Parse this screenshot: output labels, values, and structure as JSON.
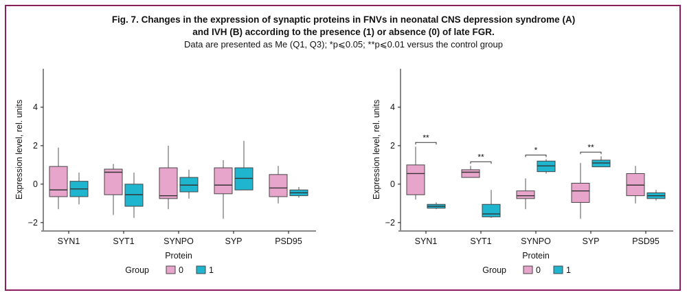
{
  "figure": {
    "title_line1": "Fig. 7. Changes in the expression of synaptic proteins in FNVs in neonatal CNS depression syndrome (A)",
    "title_line2": "and IVH (B) according to the presence (1) or absence (0) of late FGR.",
    "subtitle": "Data are presented as Me (Q1, Q3); *p⩽0.05; **p⩽0.01 versus the control group"
  },
  "colors": {
    "group0": "#e8a5cb",
    "group1": "#1fb5cf",
    "frame": "#8a1e63"
  },
  "chart_data": [
    {
      "type": "box",
      "xlabel": "Protein",
      "ylabel": "Expression level, rel. units",
      "ylim": [
        -2.4,
        6.0
      ],
      "yticks": [
        -2,
        0,
        2,
        4
      ],
      "categories": [
        "SYN1",
        "SYT1",
        "SYNPO",
        "SYP",
        "PSD95"
      ],
      "legend": {
        "title": "Group",
        "entries": [
          "0",
          "1"
        ]
      },
      "series": [
        {
          "name": "0",
          "boxes": [
            {
              "min": -1.3,
              "q1": -0.65,
              "median": -0.3,
              "q3": 0.92,
              "max": 1.9
            },
            {
              "min": -1.6,
              "q1": -0.55,
              "median": 0.62,
              "q3": 0.78,
              "max": 1.05
            },
            {
              "min": -1.3,
              "q1": -0.75,
              "median": -0.6,
              "q3": 0.85,
              "max": 2.0
            },
            {
              "min": -1.8,
              "q1": -0.5,
              "median": -0.05,
              "q3": 0.85,
              "max": 1.25
            },
            {
              "min": -1.0,
              "q1": -0.65,
              "median": -0.2,
              "q3": 0.5,
              "max": 0.95
            }
          ]
        },
        {
          "name": "1",
          "boxes": [
            {
              "min": -1.05,
              "q1": -0.65,
              "median": -0.25,
              "q3": 0.15,
              "max": 0.6
            },
            {
              "min": -1.75,
              "q1": -1.15,
              "median": -0.55,
              "q3": 0.0,
              "max": 0.6
            },
            {
              "min": -0.75,
              "q1": -0.4,
              "median": -0.05,
              "q3": 0.35,
              "max": 0.75
            },
            {
              "min": -0.3,
              "q1": -0.3,
              "median": 0.3,
              "q3": 0.85,
              "max": 2.25
            },
            {
              "min": -0.7,
              "q1": -0.6,
              "median": -0.45,
              "q3": -0.3,
              "max": -0.15
            }
          ]
        }
      ],
      "significance": []
    },
    {
      "type": "box",
      "xlabel": "Protein",
      "ylabel": "Expression level, rel. units",
      "ylim": [
        -2.4,
        6.0
      ],
      "yticks": [
        -2,
        0,
        2,
        4
      ],
      "categories": [
        "SYN1",
        "SYT1",
        "SYNPO",
        "SYP",
        "PSD95"
      ],
      "legend": {
        "title": "Group",
        "entries": [
          "0",
          "1"
        ]
      },
      "series": [
        {
          "name": "0",
          "boxes": [
            {
              "min": -0.8,
              "q1": -0.55,
              "median": 0.55,
              "q3": 1.0,
              "max": 1.95
            },
            {
              "min": 0.35,
              "q1": 0.35,
              "median": 0.62,
              "q3": 0.75,
              "max": 0.95
            },
            {
              "min": -1.3,
              "q1": -0.75,
              "median": -0.6,
              "q3": -0.35,
              "max": 0.3
            },
            {
              "min": -1.8,
              "q1": -0.95,
              "median": -0.35,
              "q3": 0.05,
              "max": 1.1
            },
            {
              "min": -1.0,
              "q1": -0.6,
              "median": -0.05,
              "q3": 0.55,
              "max": 0.95
            }
          ]
        },
        {
          "name": "1",
          "boxes": [
            {
              "min": -1.3,
              "q1": -1.25,
              "median": -1.15,
              "q3": -1.05,
              "max": -0.95
            },
            {
              "min": -1.75,
              "q1": -1.7,
              "median": -1.55,
              "q3": -1.05,
              "max": -0.3
            },
            {
              "min": 0.55,
              "q1": 0.65,
              "median": 0.95,
              "q3": 1.2,
              "max": 1.3
            },
            {
              "min": 0.9,
              "q1": 0.9,
              "median": 1.1,
              "q3": 1.25,
              "max": 1.45
            },
            {
              "min": -0.85,
              "q1": -0.75,
              "median": -0.6,
              "q3": -0.45,
              "max": -0.3
            }
          ]
        }
      ],
      "significance": [
        {
          "category": "SYN1",
          "label": "**"
        },
        {
          "category": "SYT1",
          "label": "**"
        },
        {
          "category": "SYNPO",
          "label": "*"
        },
        {
          "category": "SYP",
          "label": "**"
        }
      ]
    }
  ]
}
